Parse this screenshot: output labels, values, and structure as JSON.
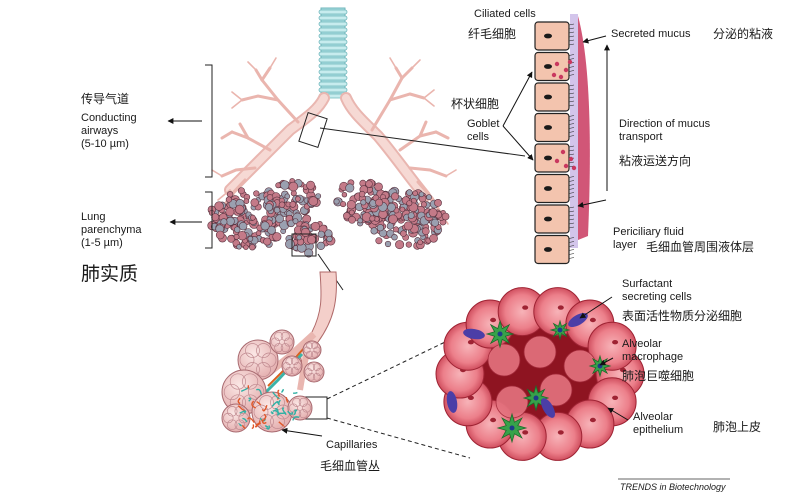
{
  "labels": {
    "ciliated_cells": "Ciliated cells",
    "ciliated_cells_zh": "纤毛细胞",
    "secreted_mucus": "Secreted mucus",
    "secreted_mucus_zh": "分泌的粘液",
    "conducting_zh": "传导气道",
    "conducting": "Conducting\nairways\n(5-10 µm)",
    "goblet_zh": "杯状细胞",
    "goblet": "Goblet\ncells",
    "direction": "Direction of mucus\ntransport",
    "direction_zh": "粘液运送方向",
    "lung_parenchyma": "Lung\nparenchyma\n(1-5 µm)",
    "lung_parenchyma_zh": "肺实质",
    "periciliary": "Periciliary fluid\nlayer",
    "periciliary_zh": "毛细血管周围液体层",
    "surfactant": "Surfactant\nsecreting cells",
    "surfactant_zh": "表面活性物质分泌细胞",
    "macrophage": "Alveolar\nmacrophage",
    "macrophage_zh": "肺泡巨噬细胞",
    "epithelium": "Alveolar\nepithelium",
    "epithelium_zh": "肺泡上皮",
    "capillaries": "Capillaries",
    "capillaries_zh": "毛细血管丛",
    "credit": "TRENDS in Biotechnology"
  },
  "colors": {
    "trachea": "#a9dde0",
    "bronchi": "#f2c9c4",
    "alveoli": "#c47a88",
    "cell_fill": "#f3c4ae",
    "nucleus": "#1a1a1a",
    "mucus": "#c9385f",
    "periciliary": "#c8b6e6",
    "alveolus_cell": "#e25b6b",
    "interstitium": "#8e1421",
    "macrophage": "#37a24a",
    "surfactant": "#4b3ea7"
  }
}
